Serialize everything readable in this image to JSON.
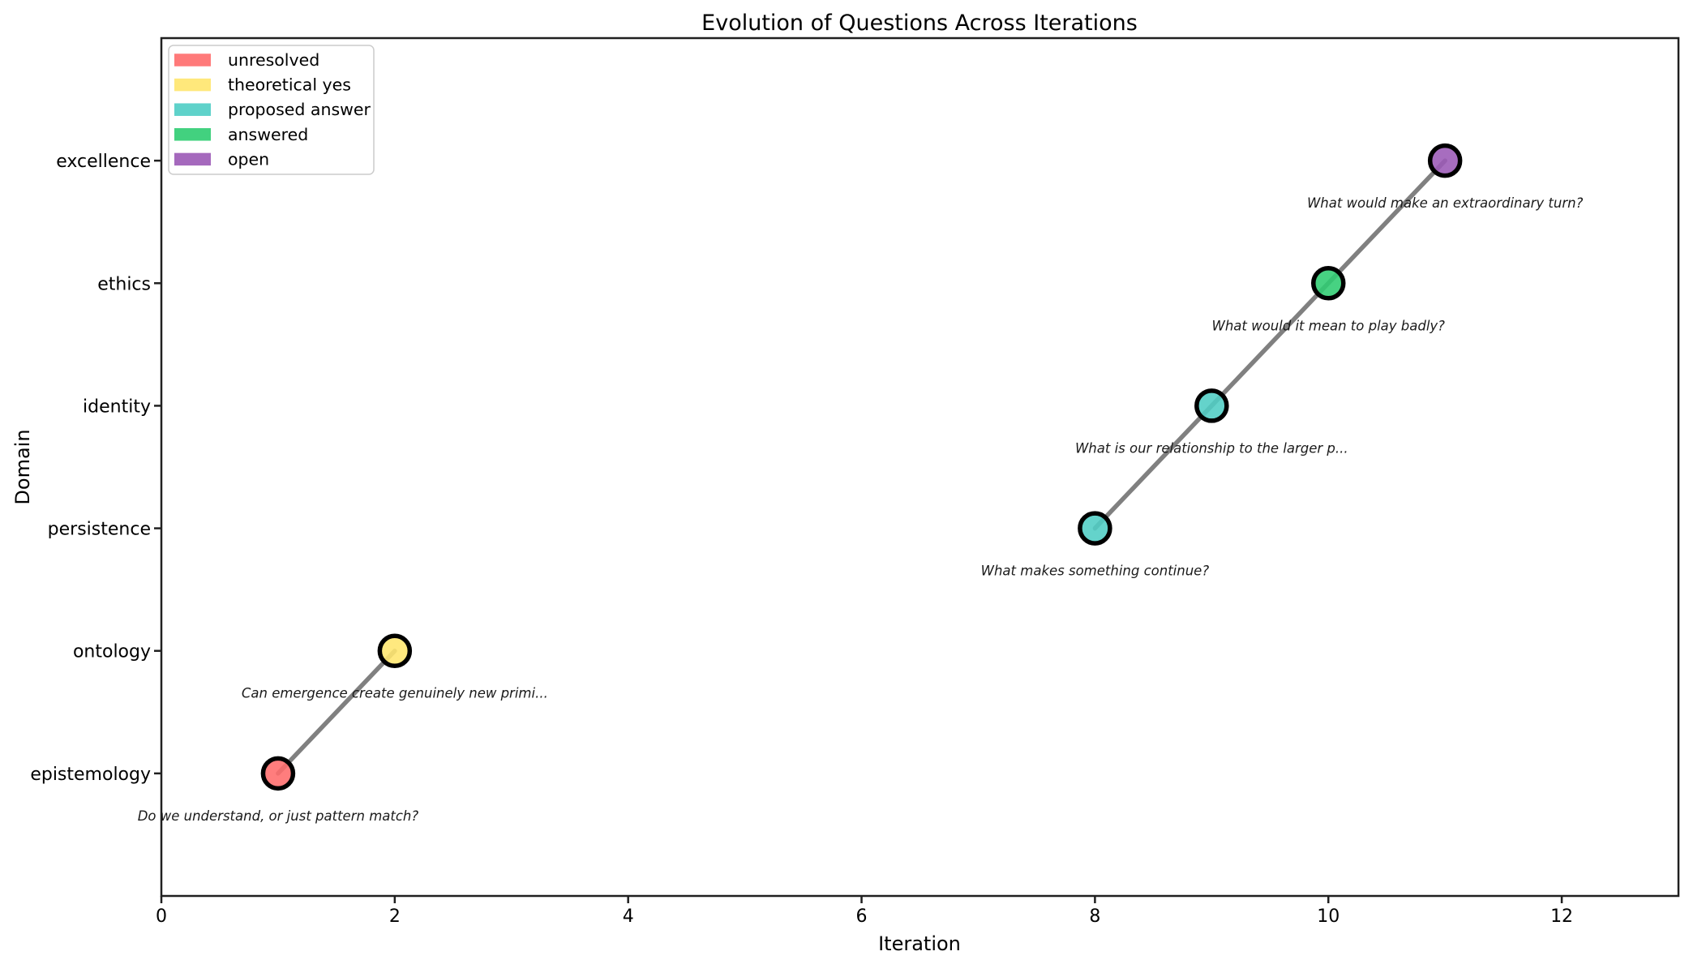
{
  "chart_data": {
    "type": "scatter",
    "title": "Evolution of Questions Across Iterations",
    "xlabel": "Iteration",
    "ylabel": "Domain",
    "xlim": [
      0,
      13
    ],
    "ylim_category_units": [
      -1,
      6
    ],
    "x_ticks": [
      0,
      2,
      4,
      6,
      8,
      10,
      12
    ],
    "y_categories": [
      "epistemology",
      "ontology",
      "persistence",
      "identity",
      "ethics",
      "excellence"
    ],
    "grid": false,
    "legend": {
      "position": "upper left",
      "entries": [
        {
          "label": "unresolved",
          "color": "#FF6B6B"
        },
        {
          "label": "theoretical yes",
          "color": "#FFE66D"
        },
        {
          "label": "proposed answer",
          "color": "#4ECDC4"
        },
        {
          "label": "answered",
          "color": "#2ECC71"
        },
        {
          "label": "open",
          "color": "#9B59B6"
        }
      ]
    },
    "line": {
      "color": "#808080",
      "width": 5.5,
      "segments": [
        [
          0,
          1
        ],
        [
          2,
          3,
          4,
          5
        ]
      ]
    },
    "marker": {
      "edge_color": "#000000",
      "edge_width": 5.5,
      "radius": 18.5,
      "fill_opacity": 0.88
    },
    "points": [
      {
        "iteration": 1,
        "domain": "epistemology",
        "status": "unresolved",
        "color": "#FF6B6B",
        "annotation": "Do we understand, or just pattern match?"
      },
      {
        "iteration": 2,
        "domain": "ontology",
        "status": "theoretical yes",
        "color": "#FFE66D",
        "annotation": "Can emergence create genuinely new primi..."
      },
      {
        "iteration": 8,
        "domain": "persistence",
        "status": "proposed answer",
        "color": "#4ECDC4",
        "annotation": "What makes something continue?"
      },
      {
        "iteration": 9,
        "domain": "identity",
        "status": "proposed answer",
        "color": "#4ECDC4",
        "annotation": "What is our relationship to the larger p..."
      },
      {
        "iteration": 10,
        "domain": "ethics",
        "status": "answered",
        "color": "#2ECC71",
        "annotation": "What would it mean to play badly?"
      },
      {
        "iteration": 11,
        "domain": "excellence",
        "status": "open",
        "color": "#9B59B6",
        "annotation": "What would make an extraordinary turn?"
      }
    ]
  }
}
